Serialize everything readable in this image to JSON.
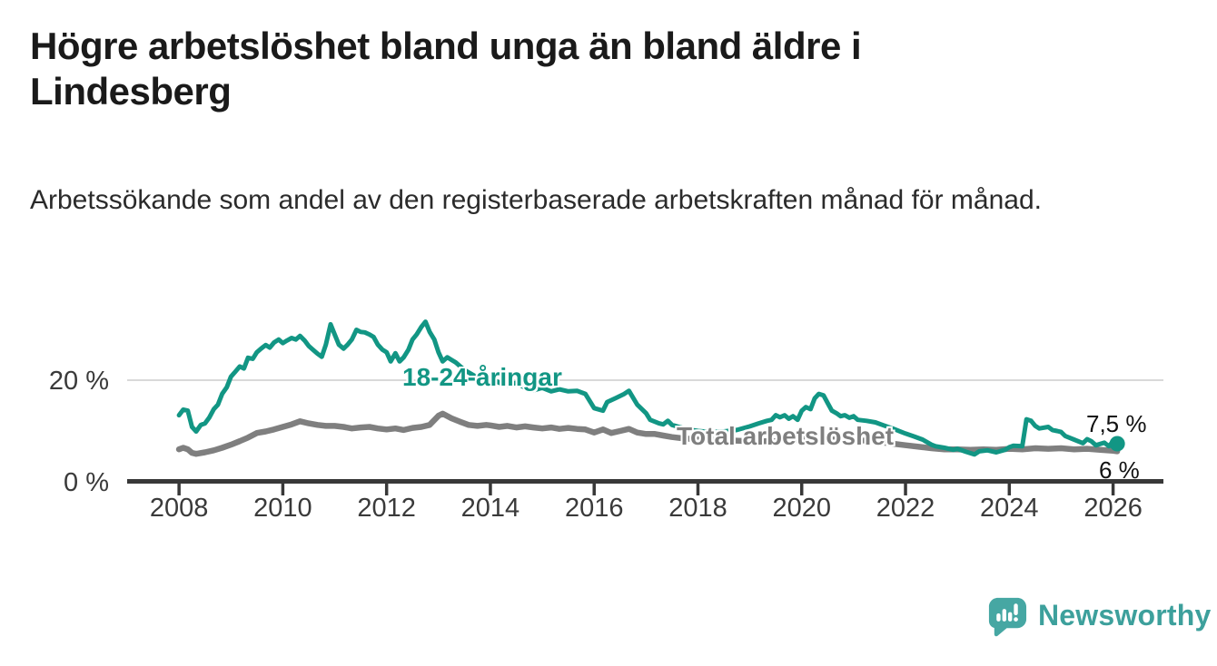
{
  "header": {
    "title": "Högre arbetslöshet bland unga än bland äldre i Lindesberg",
    "subtitle": "Arbetssökande som andel av den registerbaserade arbetskraften månad för månad."
  },
  "footer": {
    "brand": "Newsworthy",
    "brand_color": "#3da09c",
    "icon_color": "#46a7a3"
  },
  "chart_data": {
    "type": "line",
    "title": "Högre arbetslöshet bland unga än bland äldre i Lindesberg",
    "xlabel": "",
    "ylabel": "",
    "xlim": [
      2007.0,
      2026.97
    ],
    "ylim": [
      0,
      34.1
    ],
    "grid": "single horizontal gridline at 20 %",
    "legend_position": "inline labels on lines",
    "gridline_value": 20,
    "x_ticks": [
      2008,
      2010,
      2012,
      2014,
      2016,
      2018,
      2020,
      2022,
      2024,
      2026
    ],
    "x_tick_labels": [
      "2008",
      "2010",
      "2012",
      "2014",
      "2016",
      "2018",
      "2020",
      "2022",
      "2024",
      "2026"
    ],
    "y_ticks": [
      {
        "value": 20,
        "label": "20 %"
      },
      {
        "value": 0,
        "label": "0 %"
      }
    ],
    "axis_color": "#383838",
    "gridline_color": "#d9d9d9",
    "series": [
      {
        "name": "18-24-åringar",
        "color": "#129684",
        "end_label": "7,5 %",
        "end_value": 7.5,
        "end_dot": true,
        "points": [
          [
            2008.0,
            13.1
          ],
          [
            2008.08,
            14.2
          ],
          [
            2008.17,
            14.0
          ],
          [
            2008.25,
            10.8
          ],
          [
            2008.33,
            9.9
          ],
          [
            2008.42,
            11.2
          ],
          [
            2008.5,
            11.5
          ],
          [
            2008.58,
            12.6
          ],
          [
            2008.67,
            14.3
          ],
          [
            2008.75,
            15.2
          ],
          [
            2008.83,
            17.3
          ],
          [
            2008.92,
            18.6
          ],
          [
            2009.0,
            20.7
          ],
          [
            2009.08,
            21.6
          ],
          [
            2009.17,
            22.7
          ],
          [
            2009.25,
            22.3
          ],
          [
            2009.33,
            24.4
          ],
          [
            2009.42,
            24.2
          ],
          [
            2009.5,
            25.5
          ],
          [
            2009.58,
            26.2
          ],
          [
            2009.67,
            26.9
          ],
          [
            2009.75,
            26.4
          ],
          [
            2009.83,
            27.4
          ],
          [
            2009.92,
            28.0
          ],
          [
            2010.0,
            27.3
          ],
          [
            2010.08,
            27.8
          ],
          [
            2010.17,
            28.3
          ],
          [
            2010.25,
            28.0
          ],
          [
            2010.33,
            28.7
          ],
          [
            2010.42,
            27.8
          ],
          [
            2010.5,
            26.7
          ],
          [
            2010.58,
            26.0
          ],
          [
            2010.67,
            25.2
          ],
          [
            2010.75,
            24.6
          ],
          [
            2010.83,
            27.0
          ],
          [
            2010.92,
            31.0
          ],
          [
            2011.0,
            29.0
          ],
          [
            2011.08,
            27.0
          ],
          [
            2011.17,
            26.2
          ],
          [
            2011.25,
            27.0
          ],
          [
            2011.33,
            28.0
          ],
          [
            2011.42,
            29.9
          ],
          [
            2011.5,
            29.5
          ],
          [
            2011.58,
            29.4
          ],
          [
            2011.67,
            29.0
          ],
          [
            2011.75,
            28.5
          ],
          [
            2011.83,
            27.0
          ],
          [
            2011.92,
            26.0
          ],
          [
            2012.0,
            25.5
          ],
          [
            2012.08,
            23.7
          ],
          [
            2012.17,
            25.3
          ],
          [
            2012.25,
            23.7
          ],
          [
            2012.33,
            24.5
          ],
          [
            2012.42,
            26.0
          ],
          [
            2012.5,
            28.0
          ],
          [
            2012.58,
            29.0
          ],
          [
            2012.67,
            30.5
          ],
          [
            2012.75,
            31.5
          ],
          [
            2012.83,
            29.5
          ],
          [
            2012.92,
            28.0
          ],
          [
            2013.0,
            25.5
          ],
          [
            2013.08,
            23.7
          ],
          [
            2013.17,
            24.5
          ],
          [
            2013.25,
            24.0
          ],
          [
            2013.33,
            23.5
          ],
          [
            2013.5,
            22.0
          ],
          [
            2013.67,
            21.0
          ],
          [
            2013.83,
            20.0
          ],
          [
            2014.0,
            20.5
          ],
          [
            2014.17,
            19.5
          ],
          [
            2014.33,
            19.0
          ],
          [
            2014.5,
            19.5
          ],
          [
            2014.67,
            18.5
          ],
          [
            2014.83,
            18.0
          ],
          [
            2015.0,
            18.5
          ],
          [
            2015.17,
            17.8
          ],
          [
            2015.33,
            18.2
          ],
          [
            2015.5,
            17.8
          ],
          [
            2015.67,
            17.9
          ],
          [
            2015.83,
            17.3
          ],
          [
            2016.0,
            14.5
          ],
          [
            2016.17,
            14.0
          ],
          [
            2016.25,
            15.7
          ],
          [
            2016.42,
            16.5
          ],
          [
            2016.58,
            17.3
          ],
          [
            2016.67,
            17.9
          ],
          [
            2016.83,
            15.2
          ],
          [
            2017.0,
            13.5
          ],
          [
            2017.08,
            12.2
          ],
          [
            2017.25,
            11.5
          ],
          [
            2017.33,
            11.3
          ],
          [
            2017.42,
            12.0
          ],
          [
            2017.5,
            11.2
          ],
          [
            2017.67,
            10.7
          ],
          [
            2017.83,
            10.3
          ],
          [
            2018.0,
            10.0
          ],
          [
            2018.25,
            9.8
          ],
          [
            2018.5,
            9.9
          ],
          [
            2018.75,
            10.2
          ],
          [
            2019.0,
            10.9
          ],
          [
            2019.17,
            11.5
          ],
          [
            2019.33,
            12.0
          ],
          [
            2019.42,
            12.2
          ],
          [
            2019.5,
            13.1
          ],
          [
            2019.58,
            12.7
          ],
          [
            2019.67,
            13.1
          ],
          [
            2019.75,
            12.4
          ],
          [
            2019.83,
            12.9
          ],
          [
            2019.92,
            12.2
          ],
          [
            2020.0,
            14.0
          ],
          [
            2020.08,
            14.7
          ],
          [
            2020.17,
            14.3
          ],
          [
            2020.25,
            16.4
          ],
          [
            2020.33,
            17.3
          ],
          [
            2020.42,
            17.0
          ],
          [
            2020.5,
            15.5
          ],
          [
            2020.58,
            14.0
          ],
          [
            2020.67,
            13.5
          ],
          [
            2020.75,
            12.9
          ],
          [
            2020.83,
            13.1
          ],
          [
            2020.92,
            12.6
          ],
          [
            2021.0,
            12.9
          ],
          [
            2021.08,
            12.2
          ],
          [
            2021.25,
            12.0
          ],
          [
            2021.42,
            11.7
          ],
          [
            2021.58,
            11.1
          ],
          [
            2021.75,
            10.5
          ],
          [
            2021.92,
            9.8
          ],
          [
            2022.0,
            9.5
          ],
          [
            2022.17,
            8.9
          ],
          [
            2022.33,
            8.3
          ],
          [
            2022.5,
            7.3
          ],
          [
            2022.58,
            7.0
          ],
          [
            2022.75,
            6.7
          ],
          [
            2022.92,
            6.3
          ],
          [
            2023.0,
            6.5
          ],
          [
            2023.17,
            5.9
          ],
          [
            2023.33,
            5.4
          ],
          [
            2023.42,
            6.0
          ],
          [
            2023.58,
            6.2
          ],
          [
            2023.75,
            5.8
          ],
          [
            2023.92,
            6.3
          ],
          [
            2024.0,
            6.8
          ],
          [
            2024.08,
            7.1
          ],
          [
            2024.25,
            7.0
          ],
          [
            2024.33,
            12.3
          ],
          [
            2024.42,
            12.0
          ],
          [
            2024.5,
            11.0
          ],
          [
            2024.58,
            10.5
          ],
          [
            2024.75,
            10.8
          ],
          [
            2024.83,
            10.2
          ],
          [
            2024.92,
            10.0
          ],
          [
            2025.0,
            9.8
          ],
          [
            2025.08,
            9.0
          ],
          [
            2025.25,
            8.3
          ],
          [
            2025.42,
            7.6
          ],
          [
            2025.5,
            8.4
          ],
          [
            2025.58,
            8.0
          ],
          [
            2025.67,
            7.2
          ],
          [
            2025.83,
            7.7
          ],
          [
            2025.92,
            7.0
          ],
          [
            2026.0,
            8.0
          ],
          [
            2026.08,
            7.5
          ]
        ]
      },
      {
        "name": "Total arbetslöshet",
        "color": "#7f7f7f",
        "end_label": "6 %",
        "end_value": 6,
        "end_dot": false,
        "points": [
          [
            2008.0,
            6.4
          ],
          [
            2008.08,
            6.7
          ],
          [
            2008.17,
            6.4
          ],
          [
            2008.25,
            5.7
          ],
          [
            2008.33,
            5.5
          ],
          [
            2008.5,
            5.8
          ],
          [
            2008.67,
            6.2
          ],
          [
            2008.83,
            6.7
          ],
          [
            2009.0,
            7.3
          ],
          [
            2009.17,
            8.0
          ],
          [
            2009.33,
            8.7
          ],
          [
            2009.5,
            9.6
          ],
          [
            2009.67,
            9.9
          ],
          [
            2009.83,
            10.3
          ],
          [
            2010.0,
            10.8
          ],
          [
            2010.17,
            11.3
          ],
          [
            2010.33,
            11.9
          ],
          [
            2010.5,
            11.5
          ],
          [
            2010.67,
            11.2
          ],
          [
            2010.83,
            11.0
          ],
          [
            2011.0,
            11.0
          ],
          [
            2011.17,
            10.8
          ],
          [
            2011.33,
            10.5
          ],
          [
            2011.5,
            10.7
          ],
          [
            2011.67,
            10.8
          ],
          [
            2011.83,
            10.5
          ],
          [
            2012.0,
            10.3
          ],
          [
            2012.17,
            10.5
          ],
          [
            2012.33,
            10.2
          ],
          [
            2012.5,
            10.6
          ],
          [
            2012.67,
            10.8
          ],
          [
            2012.83,
            11.2
          ],
          [
            2013.0,
            13.0
          ],
          [
            2013.08,
            13.4
          ],
          [
            2013.25,
            12.5
          ],
          [
            2013.42,
            11.8
          ],
          [
            2013.58,
            11.2
          ],
          [
            2013.75,
            11.0
          ],
          [
            2013.92,
            11.2
          ],
          [
            2014.0,
            11.1
          ],
          [
            2014.17,
            10.8
          ],
          [
            2014.33,
            11.0
          ],
          [
            2014.5,
            10.7
          ],
          [
            2014.67,
            10.9
          ],
          [
            2014.83,
            10.7
          ],
          [
            2015.0,
            10.5
          ],
          [
            2015.17,
            10.7
          ],
          [
            2015.33,
            10.4
          ],
          [
            2015.5,
            10.6
          ],
          [
            2015.67,
            10.4
          ],
          [
            2015.83,
            10.3
          ],
          [
            2016.0,
            9.7
          ],
          [
            2016.17,
            10.3
          ],
          [
            2016.33,
            9.6
          ],
          [
            2016.5,
            10.0
          ],
          [
            2016.67,
            10.4
          ],
          [
            2016.83,
            9.7
          ],
          [
            2017.0,
            9.4
          ],
          [
            2017.17,
            9.4
          ],
          [
            2017.33,
            9.1
          ],
          [
            2017.5,
            8.8
          ],
          [
            2017.75,
            8.5
          ],
          [
            2018.0,
            8.4
          ],
          [
            2018.5,
            8.2
          ],
          [
            2019.0,
            8.0
          ],
          [
            2019.5,
            8.0
          ],
          [
            2020.0,
            8.3
          ],
          [
            2020.33,
            8.8
          ],
          [
            2020.67,
            8.6
          ],
          [
            2021.0,
            8.3
          ],
          [
            2021.33,
            8.0
          ],
          [
            2021.67,
            7.6
          ],
          [
            2022.0,
            7.2
          ],
          [
            2022.33,
            6.8
          ],
          [
            2022.5,
            6.6
          ],
          [
            2022.75,
            6.4
          ],
          [
            2023.0,
            6.4
          ],
          [
            2023.25,
            6.3
          ],
          [
            2023.5,
            6.4
          ],
          [
            2023.75,
            6.3
          ],
          [
            2024.0,
            6.5
          ],
          [
            2024.25,
            6.4
          ],
          [
            2024.5,
            6.6
          ],
          [
            2024.75,
            6.5
          ],
          [
            2025.0,
            6.6
          ],
          [
            2025.25,
            6.4
          ],
          [
            2025.5,
            6.5
          ],
          [
            2025.75,
            6.3
          ],
          [
            2026.0,
            6.1
          ],
          [
            2026.08,
            6.0
          ]
        ]
      }
    ]
  }
}
